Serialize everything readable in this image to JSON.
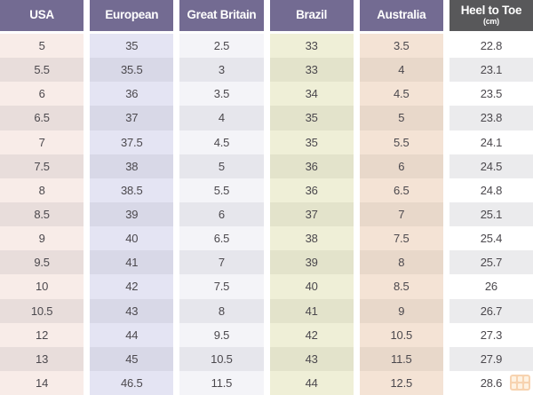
{
  "page": {
    "background": "#ffffff",
    "text_color": "#4b484d"
  },
  "watermark": {
    "icon": "grid-logo-icon",
    "color": "#ef9f52"
  },
  "chart_data": {
    "type": "table",
    "row_count": 15,
    "grid": "column-tinted with alternating row shading, white gaps between columns",
    "columns": [
      {
        "label": "USA",
        "header_bg": "#736b92",
        "header_text": "#ffffff",
        "odd_bg": "#f8ece8",
        "even_bg": "#e8dddb",
        "values": [
          "5",
          "5.5",
          "6",
          "6.5",
          "7",
          "7.5",
          "8",
          "8.5",
          "9",
          "9.5",
          "10",
          "10.5",
          "12",
          "13",
          "14"
        ]
      },
      {
        "label": "European",
        "header_bg": "#736b92",
        "header_text": "#ffffff",
        "odd_bg": "#e4e4f3",
        "even_bg": "#d8d8e7",
        "values": [
          "35",
          "35.5",
          "36",
          "37",
          "37.5",
          "38",
          "38.5",
          "39",
          "40",
          "41",
          "42",
          "43",
          "44",
          "45",
          "46.5"
        ]
      },
      {
        "label": "Great Britain",
        "header_bg": "#736b92",
        "header_text": "#ffffff",
        "odd_bg": "#f4f4f8",
        "even_bg": "#e6e6ec",
        "values": [
          "2.5",
          "3",
          "3.5",
          "4",
          "4.5",
          "5",
          "5.5",
          "6",
          "6.5",
          "7",
          "7.5",
          "8",
          "9.5",
          "10.5",
          "11.5"
        ]
      },
      {
        "label": "Brazil",
        "header_bg": "#736b92",
        "header_text": "#ffffff",
        "odd_bg": "#efefd7",
        "even_bg": "#e3e3cb",
        "values": [
          "33",
          "33",
          "34",
          "35",
          "35",
          "36",
          "36",
          "37",
          "38",
          "39",
          "40",
          "41",
          "42",
          "43",
          "44"
        ]
      },
      {
        "label": "Australia",
        "header_bg": "#736b92",
        "header_text": "#ffffff",
        "odd_bg": "#f4e3d5",
        "even_bg": "#e8d8ca",
        "values": [
          "3.5",
          "4",
          "4.5",
          "5",
          "5.5",
          "6",
          "6.5",
          "7",
          "7.5",
          "8",
          "8.5",
          "9",
          "10.5",
          "11.5",
          "12.5"
        ]
      },
      {
        "label": "Heel to Toe",
        "sublabel": "(cm)",
        "header_bg": "#58585a",
        "header_text": "#ffffff",
        "odd_bg": "#ffffff",
        "even_bg": "#ebebed",
        "values": [
          "22.8",
          "23.1",
          "23.5",
          "23.8",
          "24.1",
          "24.5",
          "24.8",
          "25.1",
          "25.4",
          "25.7",
          "26",
          "26.7",
          "27.3",
          "27.9",
          "28.6"
        ]
      }
    ]
  }
}
